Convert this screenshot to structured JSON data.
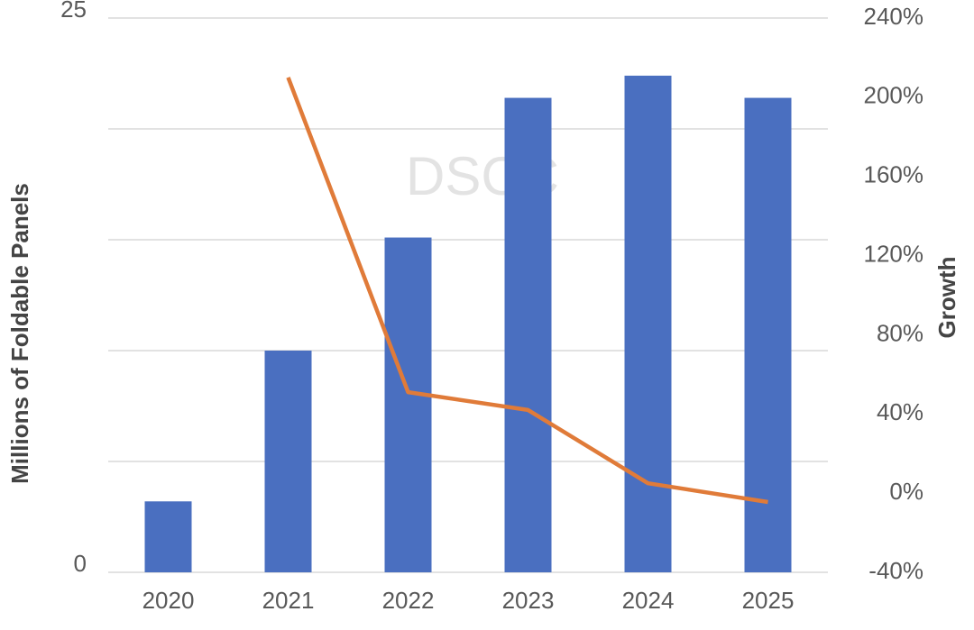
{
  "chart_data": {
    "type": "bar",
    "watermark": "DSCC",
    "y_label": "Millions of Foldable Panels",
    "y2_label": "Growth",
    "categories": [
      "2020",
      "2021",
      "2022",
      "2023",
      "2024",
      "2025"
    ],
    "series": [
      {
        "name": "Foldable Panels",
        "type": "bar",
        "color": "#4a6fc0",
        "values": [
          3.2,
          10.0,
          15.1,
          21.4,
          22.4,
          21.4
        ]
      },
      {
        "name": "Growth",
        "type": "line",
        "axis": "y2",
        "color": "#e07b39",
        "values": [
          null,
          210,
          51,
          42,
          5,
          -4.5
        ]
      }
    ],
    "ylim": [
      0,
      25
    ],
    "yticks": [
      0,
      {
        "value": 5,
        "label": null
      },
      {
        "value": 10,
        "label": null
      },
      {
        "value": 15,
        "label": null
      },
      {
        "value": 20,
        "label": null
      },
      25
    ],
    "y2lim": [
      -40,
      240
    ],
    "y2ticks": [
      {
        "value": -40,
        "label": "-40%"
      },
      {
        "value": 0,
        "label": "0%"
      },
      {
        "value": 40,
        "label": "40%"
      },
      {
        "value": 80,
        "label": "80%"
      },
      {
        "value": 120,
        "label": "120%"
      },
      {
        "value": 160,
        "label": "160%"
      },
      {
        "value": 200,
        "label": "200%"
      },
      {
        "value": 240,
        "label": "240%"
      }
    ],
    "grid": true
  }
}
